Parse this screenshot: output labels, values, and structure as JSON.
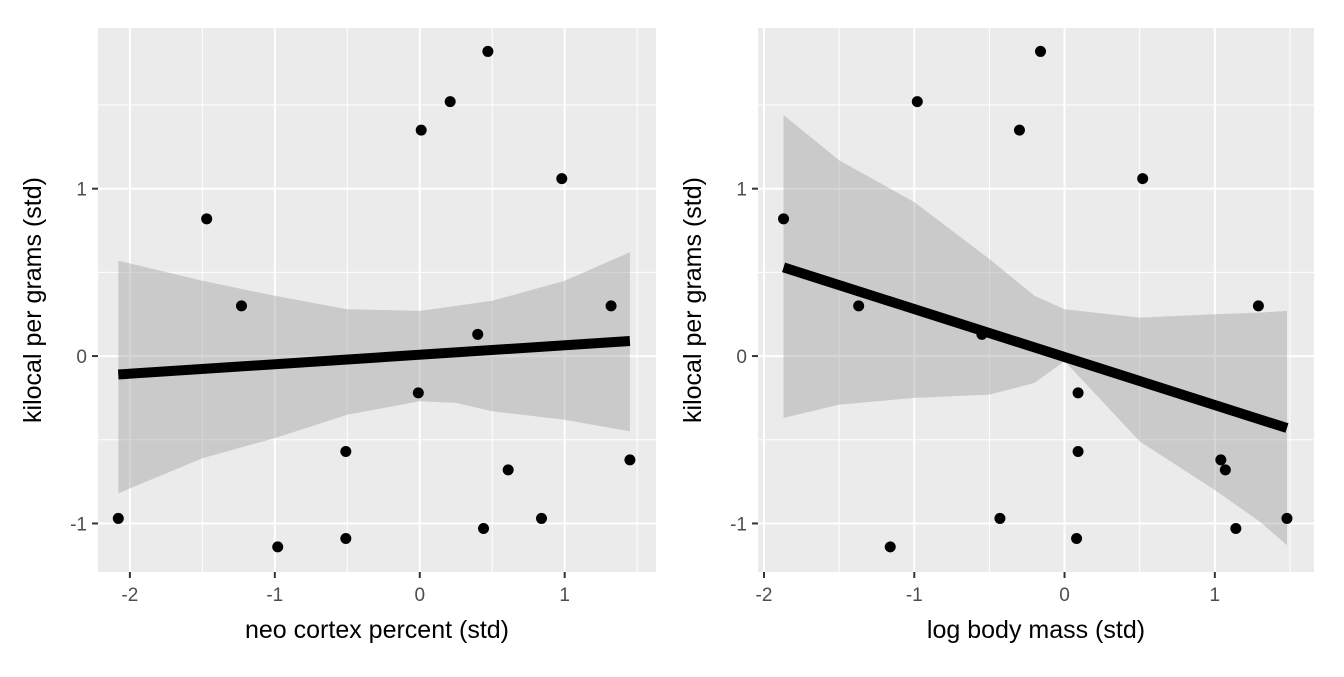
{
  "chart_data": [
    {
      "type": "scatter",
      "title": "",
      "xlabel": "neo cortex percent (std)",
      "ylabel": "kilocal per grams (std)",
      "xlim": [
        -2.22,
        1.63
      ],
      "ylim": [
        -1.29,
        1.96
      ],
      "xticks": [
        -2,
        -1,
        0,
        1
      ],
      "xtick_labels": [
        "-2",
        "-1",
        "0",
        "1"
      ],
      "yticks": [
        -1,
        0,
        1
      ],
      "ytick_labels": [
        "-1",
        "0",
        "1"
      ],
      "grid": true,
      "points": {
        "x": [
          -2.08,
          -1.47,
          -1.23,
          -0.98,
          -0.51,
          -0.51,
          -0.01,
          0.01,
          0.21,
          0.4,
          0.44,
          0.47,
          0.61,
          0.84,
          0.98,
          1.32,
          1.45
        ],
        "y": [
          -0.97,
          0.82,
          0.3,
          -1.14,
          -0.57,
          -1.09,
          -0.22,
          1.35,
          1.52,
          0.13,
          -1.03,
          1.82,
          -0.68,
          -0.97,
          1.06,
          0.3,
          -0.62
        ]
      },
      "fit_line": {
        "x": [
          -2.08,
          1.45
        ],
        "y": [
          -0.11,
          0.09
        ]
      },
      "ribbon": {
        "x": [
          -2.08,
          -1.5,
          -1.0,
          -0.5,
          0.0,
          0.25,
          0.5,
          1.0,
          1.45
        ],
        "lower": [
          -0.82,
          -0.61,
          -0.49,
          -0.35,
          -0.27,
          -0.28,
          -0.33,
          -0.38,
          -0.45
        ],
        "upper": [
          0.57,
          0.45,
          0.36,
          0.28,
          0.27,
          0.3,
          0.33,
          0.45,
          0.62
        ]
      },
      "colors": {
        "panel": "#ebebeb",
        "grid": "#ffffff",
        "points": "#000000",
        "line": "#000000",
        "ribbon": "#999999"
      }
    },
    {
      "type": "scatter",
      "title": "",
      "xlabel": "log body mass (std)",
      "ylabel": "kilocal per grams (std)",
      "xlim": [
        -2.04,
        1.66
      ],
      "ylim": [
        -1.29,
        1.96
      ],
      "xticks": [
        -2,
        -1,
        0,
        1
      ],
      "xtick_labels": [
        "-2",
        "-1",
        "0",
        "1"
      ],
      "yticks": [
        -1,
        0,
        1
      ],
      "ytick_labels": [
        "-1",
        "0",
        "1"
      ],
      "grid": true,
      "points": {
        "x": [
          -1.87,
          -1.37,
          -1.16,
          -0.98,
          -0.55,
          -0.43,
          -0.3,
          -0.16,
          0.08,
          0.09,
          0.09,
          0.52,
          1.04,
          1.07,
          1.14,
          1.29,
          1.48
        ],
        "y": [
          0.82,
          0.3,
          -1.14,
          1.52,
          0.13,
          -0.97,
          1.35,
          1.82,
          -1.09,
          -0.22,
          -0.57,
          1.06,
          -0.62,
          -0.68,
          -1.03,
          0.3,
          -0.97
        ]
      },
      "fit_line": {
        "x": [
          -1.87,
          1.48
        ],
        "y": [
          0.53,
          -0.43
        ]
      },
      "ribbon": {
        "x": [
          -1.87,
          -1.5,
          -1.0,
          -0.5,
          -0.2,
          0.0,
          0.5,
          1.0,
          1.3,
          1.48
        ],
        "lower": [
          -0.37,
          -0.29,
          -0.25,
          -0.23,
          -0.16,
          -0.03,
          -0.51,
          -0.8,
          -0.99,
          -1.13
        ],
        "upper": [
          1.44,
          1.17,
          0.92,
          0.58,
          0.36,
          0.28,
          0.23,
          0.25,
          0.26,
          0.27
        ]
      },
      "colors": {
        "panel": "#ebebeb",
        "grid": "#ffffff",
        "points": "#000000",
        "line": "#000000",
        "ribbon": "#999999"
      }
    }
  ]
}
